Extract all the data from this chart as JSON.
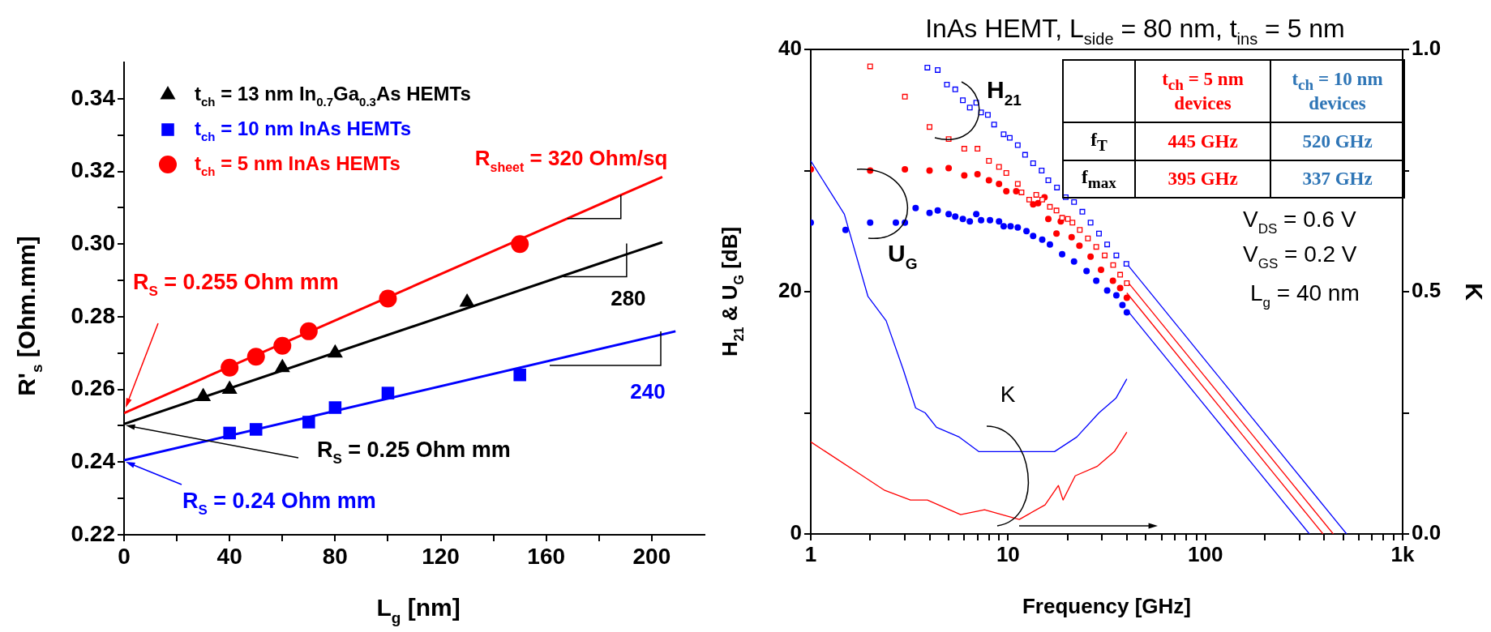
{
  "chart_data": [
    {
      "type": "scatter",
      "xlabel": "L$_{g}$ [nm]",
      "ylabel": "R'$_{s}$ [Ohm.mm]",
      "xlim": [
        0,
        220
      ],
      "ylim": [
        0.22,
        0.35
      ],
      "xticks": [
        0,
        {
          "value": 20,
          "label": null
        },
        40,
        {
          "value": 60,
          "label": null
        },
        80,
        {
          "value": 100,
          "label": null
        },
        120,
        {
          "value": 140,
          "label": null
        },
        160,
        {
          "value": 180,
          "label": null
        },
        200
      ],
      "yticks": [
        0.22,
        {
          "value": 0.23,
          "label": null
        },
        0.24,
        {
          "value": 0.25,
          "label": null
        },
        0.26,
        {
          "value": 0.27,
          "label": null
        },
        0.28,
        {
          "value": 0.29,
          "label": null
        },
        {
          "value": 0.3,
          "label": "0.30"
        },
        {
          "value": 0.31,
          "label": null
        },
        0.32,
        {
          "value": 0.33,
          "label": null
        },
        0.34
      ],
      "grid": false,
      "legend": "top left",
      "series": [
        {
          "name": "t$_{ch}$ = 13 nm In$_{0.7}$Ga$_{0.3}$As HEMTs",
          "type": "scatter",
          "marker": "triangle",
          "color": "#000000",
          "x": [
            30,
            40,
            60,
            80,
            130
          ],
          "values": [
            0.258,
            0.26,
            0.266,
            0.27,
            0.284
          ]
        },
        {
          "name": "t$_{ch}$ = 10 nm InAs HEMTs",
          "type": "scatter",
          "marker": "square",
          "color": "#0000ff",
          "x": [
            40,
            50,
            70,
            80,
            100,
            150
          ],
          "values": [
            0.248,
            0.249,
            0.251,
            0.255,
            0.259,
            0.264
          ]
        },
        {
          "name": "t$_{ch}$ = 5 nm InAs HEMTs",
          "type": "scatter",
          "marker": "circle",
          "color": "#ff0000",
          "x": [
            40,
            50,
            60,
            70,
            100,
            150
          ],
          "values": [
            0.266,
            0.269,
            0.272,
            0.276,
            0.285,
            0.3
          ]
        },
        {
          "type": "line",
          "marker": "none",
          "color": "#000000",
          "x": [
            0,
            204
          ],
          "values": [
            0.2505,
            0.3005
          ]
        },
        {
          "type": "line",
          "marker": "none",
          "color": "#0000ff",
          "x": [
            0,
            209
          ],
          "values": [
            0.2405,
            0.276
          ]
        },
        {
          "type": "line",
          "marker": "none",
          "color": "#ff0000",
          "x": [
            0,
            204
          ],
          "values": [
            0.2535,
            0.3185
          ]
        }
      ],
      "annotations": [
        {
          "text": "R$_{sheet}$ = 320 Ohm/sq",
          "x": 168,
          "y": 0.307
        },
        {
          "text": "280",
          "x": 166.5,
          "y": 0.291
        },
        "240",
        "R$_{S}$ = 0.255 Ohm mm",
        "R$_{S}$ = 0.25 Ohm mm",
        "R$_{S}$ = 0.24 Ohm mm"
      ]
    },
    {
      "type": "scatter",
      "title": "InAs HEMT, L$_{side}$ = 80 nm, t$_{ins}$ = 5 nm",
      "xlabel": "Frequency [GHz]",
      "ylabel": "H$_{21}$ & U$_{G}$ [dB]",
      "y2label": "K",
      "log": "x",
      "xlim": [
        1,
        1000
      ],
      "ylim": [
        0,
        40
      ],
      "y2lim": [
        0,
        1
      ],
      "xticks": [
        1,
        {
          "value": 2,
          "label": null
        },
        {
          "value": 3,
          "label": null
        },
        {
          "value": 4,
          "label": null
        },
        {
          "value": 5,
          "label": null
        },
        {
          "value": 6,
          "label": null
        },
        {
          "value": 7,
          "label": null
        },
        {
          "value": 8,
          "label": null
        },
        {
          "value": 9,
          "label": null
        },
        10,
        {
          "value": 20,
          "label": null
        },
        {
          "value": 30,
          "label": null
        },
        {
          "value": 40,
          "label": null
        },
        {
          "value": 50,
          "label": null
        },
        {
          "value": 60,
          "label": null
        },
        {
          "value": 70,
          "label": null
        },
        {
          "value": 80,
          "label": null
        },
        {
          "value": 90,
          "label": null
        },
        100,
        {
          "value": 200,
          "label": null
        },
        {
          "value": 300,
          "label": null
        },
        {
          "value": 400,
          "label": null
        },
        {
          "value": 500,
          "label": null
        },
        {
          "value": 600,
          "label": null
        },
        {
          "value": 700,
          "label": null
        },
        {
          "value": 800,
          "label": null
        },
        {
          "value": 900,
          "label": null
        },
        {
          "value": 1000,
          "label": "1k"
        }
      ],
      "yticks": [
        0,
        {
          "value": 10,
          "label": null
        },
        20,
        {
          "value": 30,
          "label": null
        },
        40
      ],
      "y2ticks": [
        {
          "value": 0,
          "label": "0.0"
        },
        {
          "value": 0.25,
          "label": null
        },
        {
          "value": 0.5,
          "label": "0.5"
        },
        {
          "value": 0.75,
          "label": null
        },
        {
          "value": 1,
          "label": "1.0"
        }
      ],
      "grid": false,
      "series": [
        {
          "type": "scatter",
          "marker": "square",
          "color": "#ff0000",
          "x": [
            2,
            3,
            4,
            5,
            6,
            7,
            8,
            9,
            9.8,
            11.2,
            11.7,
            12.8,
            13.9,
            14.9,
            16.3,
            17.6,
            18.8,
            20.1,
            21.2,
            23.1,
            25.4,
            28,
            30.9,
            34.1,
            37,
            40
          ],
          "values": [
            38.6,
            36.1,
            33.6,
            32.6,
            31.8,
            31.8,
            30.8,
            30.3,
            29.8,
            28.9,
            28.2,
            27.6,
            28.0,
            27.6,
            27.0,
            26.7,
            26.1,
            26.0,
            25.7,
            25.1,
            24.4,
            23.7,
            23.0,
            22.2,
            21.4,
            20.7
          ]
        },
        {
          "type": "scatter",
          "marker": "square",
          "color": "#0000ff",
          "x": [
            3.9,
            4.4,
            4.9,
            5.4,
            5.9,
            6.4,
            6.9,
            7.3,
            7.9,
            8.5,
            9.5,
            10.2,
            11.2,
            12.2,
            13.4,
            14.8,
            16,
            17.7,
            19.6,
            21.6,
            23.8,
            26.2,
            28.9,
            31.8,
            35.4,
            39.8
          ],
          "values": [
            38.5,
            38.3,
            37.1,
            36.7,
            35.8,
            35.2,
            35.6,
            34.8,
            34.6,
            33.8,
            33.0,
            32.7,
            32.1,
            31.3,
            30.6,
            30.0,
            29.2,
            28.6,
            27.8,
            27.4,
            26.6,
            25.7,
            24.8,
            23.9,
            23.0,
            22.3
          ]
        },
        {
          "type": "scatter",
          "marker": "circle",
          "color": "#ff0000",
          "x": [
            1,
            2,
            3,
            4,
            5,
            6,
            7,
            8,
            9,
            9.8,
            11,
            11.7,
            13.4,
            14.2,
            15.3,
            16,
            17.6,
            18.5,
            21,
            23,
            26.2,
            29.6,
            34,
            37,
            40
          ],
          "values": [
            30.1,
            30.0,
            30.1,
            30.0,
            30.2,
            29.6,
            29.7,
            29.2,
            28.9,
            28.3,
            28.3,
            null,
            27.2,
            27.3,
            27.8,
            26.0,
            24.8,
            25.8,
            24.5,
            23.8,
            22.9,
            21.8,
            20.9,
            20.3,
            19.5
          ]
        },
        {
          "type": "scatter",
          "marker": "circle",
          "color": "#0000ff",
          "x": [
            1,
            1.5,
            2,
            2.7,
            3,
            3.4,
            4,
            4.4,
            5,
            5.4,
            5.9,
            6.4,
            6.9,
            7.3,
            8.1,
            9,
            9.5,
            10.3,
            11.2,
            12.4,
            13.4,
            14.9,
            16.3,
            18.8,
            21.6,
            25,
            28,
            31.8,
            35.4,
            38,
            40
          ],
          "values": [
            25.7,
            25.1,
            25.7,
            25.7,
            25.7,
            26.9,
            26.5,
            26.7,
            26.4,
            26.2,
            26.0,
            25.8,
            26.4,
            25.9,
            25.9,
            25.8,
            25.4,
            25.4,
            25.3,
            25.0,
            24.6,
            24.3,
            23.9,
            23.1,
            22.5,
            21.7,
            20.9,
            20.1,
            19.7,
            18.9,
            18.3
          ]
        },
        {
          "type": "line",
          "marker": "none",
          "axis": "y2",
          "color": "#ff0000",
          "x": [
            1,
            1.83,
            2.37,
            3.2,
            3.9,
            5.75,
            7.6,
            9.3,
            11.4,
            12.6,
            15.4,
            18,
            19,
            21.9,
            28.4,
            34.6,
            40
          ],
          "values": [
            0.19,
            0.12,
            0.09,
            0.07,
            0.07,
            0.04,
            0.05,
            0.04,
            0.03,
            0.04,
            0.06,
            0.1,
            0.07,
            0.12,
            0.14,
            0.17,
            0.21
          ]
        },
        {
          "type": "line",
          "marker": "none",
          "axis": "y2",
          "color": "#0000ff",
          "x": [
            1,
            1.48,
            1.95,
            2.41,
            2.94,
            3.4,
            3.8,
            4.34,
            5.66,
            7.1,
            9.8,
            13.1,
            17.2,
            22.3,
            28.9,
            35.2,
            40
          ],
          "values": [
            0.77,
            0.66,
            0.49,
            0.44,
            0.34,
            0.26,
            0.25,
            0.22,
            0.2,
            0.17,
            0.17,
            0.17,
            0.17,
            0.2,
            0.25,
            0.28,
            0.32
          ]
        },
        {
          "type": "line",
          "marker": "none",
          "color": "#0000ff",
          "x": [
            40,
            520
          ],
          "values": [
            22.3,
            0
          ]
        },
        {
          "type": "line",
          "marker": "none",
          "color": "#ff0000",
          "x": [
            40,
            445
          ],
          "values": [
            20.9,
            0
          ]
        },
        {
          "type": "line",
          "marker": "none",
          "color": "#ff0000",
          "x": [
            40,
            395
          ],
          "values": [
            19.9,
            0
          ]
        },
        {
          "type": "line",
          "marker": "none",
          "color": "#0000ff",
          "x": [
            40,
            337
          ],
          "values": [
            18.5,
            0
          ]
        }
      ],
      "annotations": [
        "H$_{21}$",
        "U$_{G}$",
        "K",
        "V$_{DS}$ = 0.6 V",
        "V$_{GS}$ = 0.2 V",
        "L$_{g}$ = 40 nm",
        "t$_{ch}$ = 5 nm devices",
        "t$_{ch}$ = 10 nm devices",
        "f$_{T}$",
        "445 GHz",
        "520 GHz",
        "f$_{max}$",
        "395 GHz",
        "337 GHz"
      ]
    }
  ]
}
